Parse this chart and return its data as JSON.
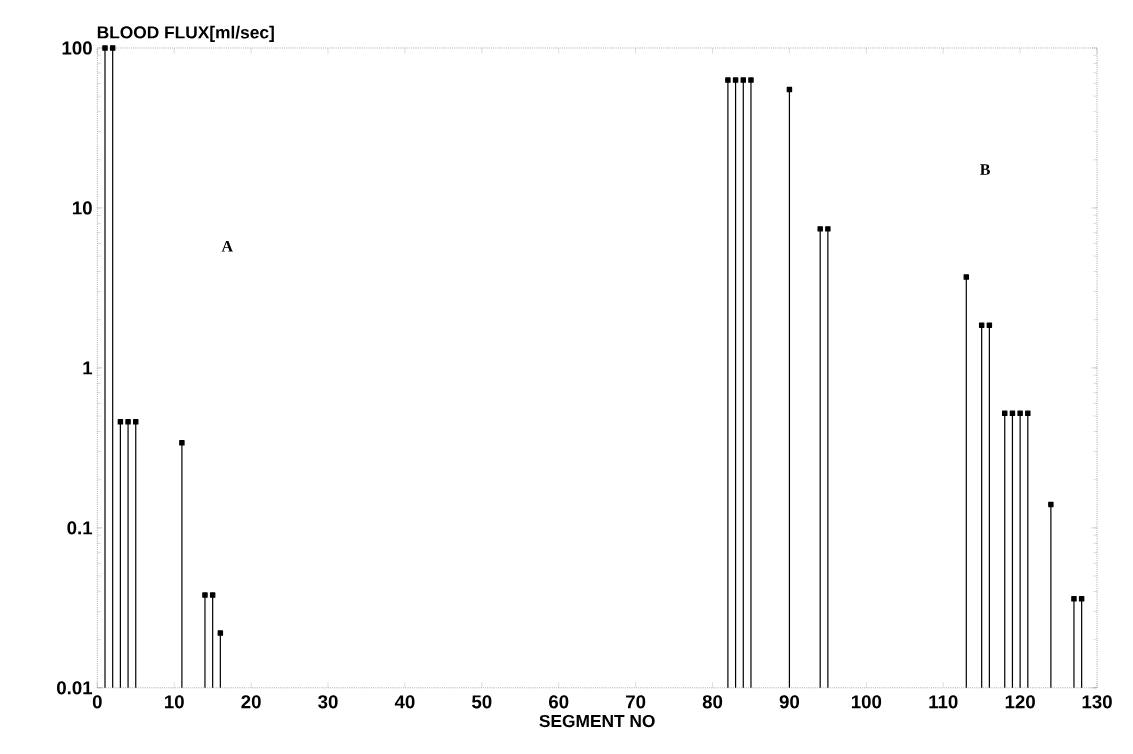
{
  "chart_data": {
    "type": "lollipop",
    "ylabel": "BLOOD FLUX[ml/sec]",
    "xlabel": "SEGMENT NO",
    "x": [
      1,
      2,
      3,
      4,
      5,
      11,
      14,
      15,
      16,
      82,
      83,
      84,
      85,
      90,
      94,
      95,
      113,
      115,
      116,
      118,
      119,
      120,
      121,
      124,
      127,
      128
    ],
    "values": [
      100,
      100,
      0.46,
      0.46,
      0.46,
      0.34,
      0.038,
      0.038,
      0.022,
      63,
      63,
      63,
      63,
      55,
      7.4,
      7.4,
      3.7,
      1.85,
      1.85,
      0.52,
      0.52,
      0.52,
      0.52,
      0.14,
      0.036,
      0.036
    ],
    "color": "#000000",
    "marker": "square",
    "log": "y",
    "xlim": [
      0,
      130
    ],
    "xticks": [
      0,
      10,
      20,
      30,
      40,
      50,
      60,
      70,
      80,
      90,
      100,
      110,
      120,
      130
    ],
    "ylim": [
      0.01,
      100
    ],
    "yticks": [
      0.01,
      0.1,
      1,
      10,
      100
    ],
    "annotations": [
      "A",
      "B"
    ]
  }
}
